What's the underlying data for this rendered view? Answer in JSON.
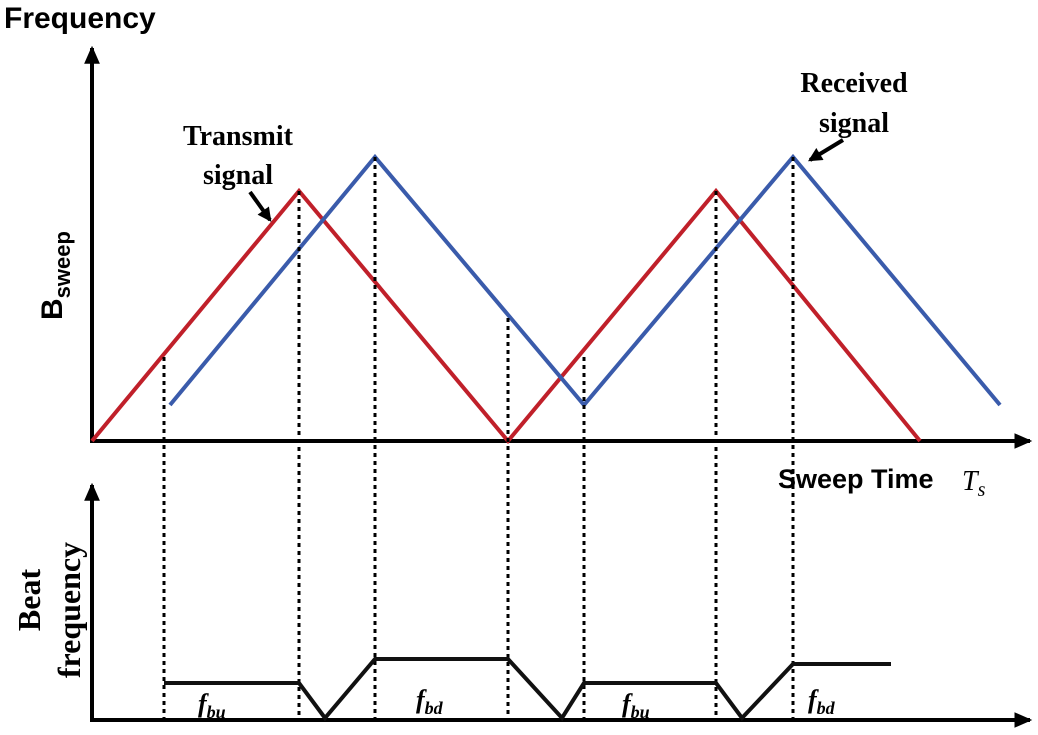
{
  "colors": {
    "transmit": "#c0202a",
    "received": "#3a5bab",
    "beat": "#111111",
    "axis": "#000000",
    "guide": "#000000"
  },
  "top_chart": {
    "y_axis_label": "Frequency",
    "bandwidth_label_main": "B",
    "bandwidth_label_sub": "sweep",
    "x_axis_label": "Sweep Time",
    "x_axis_symbol_main": "T",
    "x_axis_symbol_sub": "s",
    "transmit_label_line1": "Transmit",
    "transmit_label_line2": "signal",
    "received_label_line1": "Received",
    "received_label_line2": "signal"
  },
  "bottom_chart": {
    "y_axis_label_line1": "Beat",
    "y_axis_label_line2": "frequency",
    "segments": [
      {
        "main": "f",
        "sub": "bu"
      },
      {
        "main": "f",
        "sub": "bd"
      },
      {
        "main": "f",
        "sub": "bu"
      },
      {
        "main": "f",
        "sub": "bd"
      }
    ]
  }
}
